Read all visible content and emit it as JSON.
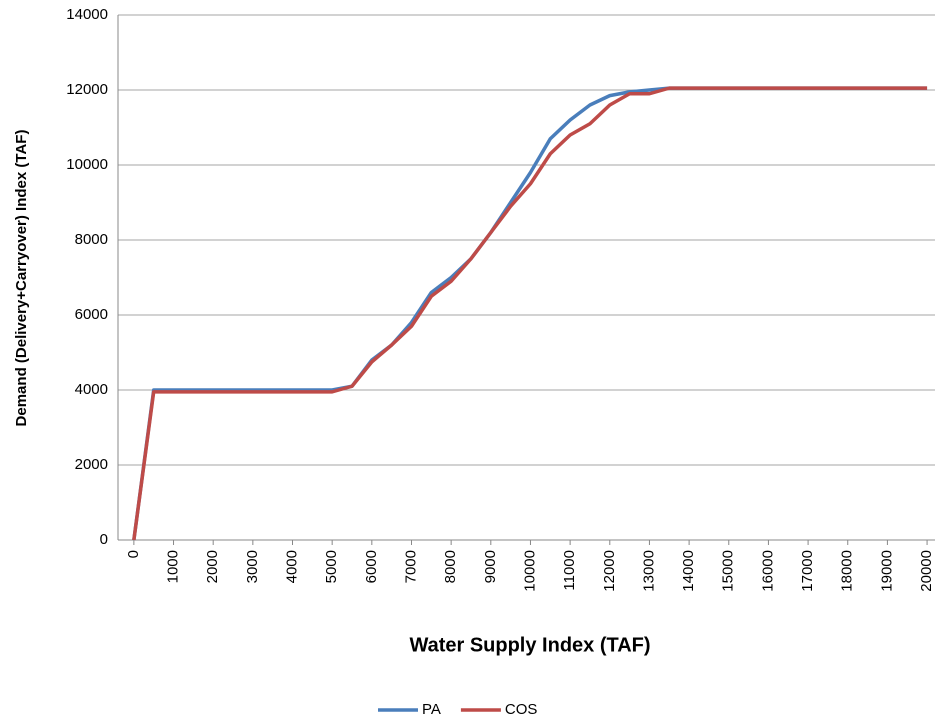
{
  "chart_data": {
    "type": "line",
    "x_label": "Water Supply Index (TAF)",
    "y_label": "Demand (Delivery+Carryover) Index (TAF)",
    "x": [
      0,
      500,
      1000,
      1500,
      2000,
      2500,
      3000,
      3500,
      4000,
      4500,
      5000,
      5500,
      6000,
      6500,
      7000,
      7500,
      8000,
      8500,
      9000,
      9500,
      10000,
      10500,
      11000,
      11500,
      12000,
      12500,
      13000,
      13500,
      14000,
      14500,
      15000,
      15500,
      16000,
      16500,
      17000,
      17500,
      18000,
      18500,
      19000,
      19500,
      20000
    ],
    "series": [
      {
        "name": "PA",
        "color": "#4a7ebb",
        "values": [
          0,
          4000,
          4000,
          4000,
          4000,
          4000,
          4000,
          4000,
          4000,
          4000,
          4000,
          4100,
          4800,
          5200,
          5800,
          6600,
          7000,
          7500,
          8200,
          9000,
          9800,
          10700,
          11200,
          11600,
          11850,
          11950,
          12000,
          12050,
          12050,
          12050,
          12050,
          12050,
          12050,
          12050,
          12050,
          12050,
          12050,
          12050,
          12050,
          12050,
          12050
        ]
      },
      {
        "name": "COS",
        "color": "#be4b48",
        "values": [
          0,
          3950,
          3950,
          3950,
          3950,
          3950,
          3950,
          3950,
          3950,
          3950,
          3950,
          4100,
          4750,
          5200,
          5700,
          6500,
          6900,
          7500,
          8200,
          8900,
          9500,
          10300,
          10800,
          11100,
          11600,
          11900,
          11900,
          12050,
          12050,
          12050,
          12050,
          12050,
          12050,
          12050,
          12050,
          12050,
          12050,
          12050,
          12050,
          12050,
          12050
        ]
      }
    ],
    "xlim": [
      -400,
      20200
    ],
    "ylim": [
      0,
      14000
    ],
    "xticks": [
      0,
      1000,
      2000,
      3000,
      4000,
      5000,
      6000,
      7000,
      8000,
      9000,
      10000,
      11000,
      12000,
      13000,
      14000,
      15000,
      16000,
      17000,
      18000,
      19000,
      20000
    ],
    "yticks": [
      0,
      2000,
      4000,
      6000,
      8000,
      10000,
      12000,
      14000
    ],
    "grid": true
  }
}
